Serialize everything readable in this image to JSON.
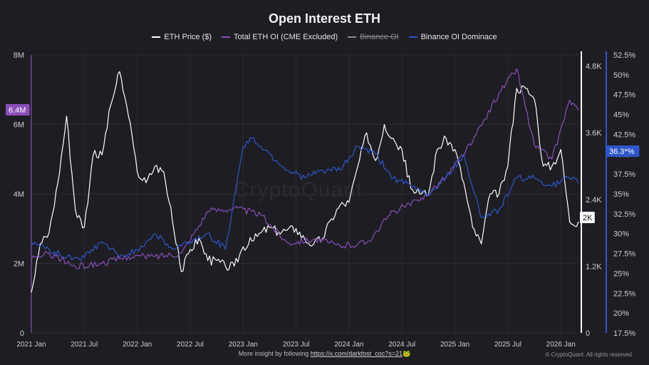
{
  "chart_data": {
    "type": "line",
    "title": "Open Interest ETH",
    "legend_position": "top-center",
    "grid": true,
    "x_ticks": [
      "2021 Jan",
      "2021 Jul",
      "2022 Jan",
      "2022 Jul",
      "2023 Jan",
      "2023 Jul",
      "2024 Jan",
      "2024 Jul",
      "2025 Jan",
      "2025 Jul",
      "2026 Jan"
    ],
    "x_range": [
      "2021 Jan",
      "2026 Mar"
    ],
    "y_left": {
      "ylim": [
        0,
        8000000
      ],
      "ticks": [
        "0",
        "2M",
        "4M",
        "6M",
        "8M"
      ]
    },
    "y_price": {
      "ylim": [
        0,
        5000
      ],
      "ticks": [
        "0",
        "1.2K",
        "2.4K",
        "3.6K",
        "4.8K"
      ]
    },
    "y_dominance": {
      "ylim": [
        17.5,
        52.5
      ],
      "unit": "%",
      "ticks": [
        "17.5%",
        "20%",
        "22.5%",
        "25%",
        "27.5%",
        "30%",
        "32.5%",
        "35%",
        "37.5%",
        "40%",
        "42.5%",
        "45%",
        "47.5%",
        "50%",
        "52.5%"
      ]
    },
    "badges": {
      "left": "6.4M",
      "price": "2K",
      "dominance": "36.3*%"
    },
    "series": [
      {
        "name": "ETH Price ($)",
        "axis": "price",
        "color": "#ffffff",
        "x": [
          "2021-01",
          "2021-02",
          "2021-03",
          "2021-04",
          "2021-05",
          "2021-06",
          "2021-07",
          "2021-08",
          "2021-09",
          "2021-10",
          "2021-11",
          "2021-12",
          "2022-01",
          "2022-02",
          "2022-03",
          "2022-04",
          "2022-05",
          "2022-06",
          "2022-07",
          "2022-08",
          "2022-09",
          "2022-10",
          "2022-11",
          "2022-12",
          "2023-01",
          "2023-02",
          "2023-03",
          "2023-04",
          "2023-05",
          "2023-06",
          "2023-07",
          "2023-08",
          "2023-09",
          "2023-10",
          "2023-11",
          "2023-12",
          "2024-01",
          "2024-02",
          "2024-03",
          "2024-04",
          "2024-05",
          "2024-06",
          "2024-07",
          "2024-08",
          "2024-09",
          "2024-10",
          "2024-11",
          "2024-12",
          "2025-01",
          "2025-02",
          "2025-03",
          "2025-04",
          "2025-05",
          "2025-06",
          "2025-07",
          "2025-08",
          "2025-09",
          "2025-10",
          "2025-11",
          "2025-12",
          "2026-01",
          "2026-02",
          "2026-03"
        ],
        "values": [
          730,
          1600,
          1800,
          2700,
          3900,
          2200,
          1900,
          3200,
          3200,
          4100,
          4700,
          3900,
          2900,
          2700,
          3000,
          2900,
          2000,
          1100,
          1500,
          1700,
          1300,
          1300,
          1200,
          1200,
          1550,
          1650,
          1800,
          1900,
          1820,
          1850,
          1880,
          1680,
          1600,
          1700,
          2050,
          2300,
          2350,
          3000,
          3600,
          3100,
          3750,
          3500,
          3300,
          2600,
          2500,
          2500,
          3300,
          3500,
          3300,
          2700,
          1900,
          1600,
          2500,
          2500,
          3000,
          4400,
          4400,
          4200,
          3000,
          3000,
          3300,
          2000,
          2000
        ]
      },
      {
        "name": "Total ETH OI (CME Excluded)",
        "axis": "left",
        "color": "#8a4fb8",
        "x": [
          "2021-01",
          "2021-03",
          "2021-06",
          "2021-09",
          "2021-12",
          "2022-03",
          "2022-06",
          "2022-09",
          "2022-12",
          "2023-03",
          "2023-06",
          "2023-09",
          "2023-12",
          "2024-03",
          "2024-06",
          "2024-09",
          "2024-12",
          "2025-03",
          "2025-06",
          "2025-08",
          "2025-10",
          "2025-12",
          "2026-02",
          "2026-03"
        ],
        "values": [
          2100000,
          2300000,
          1900000,
          2000000,
          2200000,
          2200000,
          2300000,
          3500000,
          3600000,
          3400000,
          2600000,
          2700000,
          2500000,
          2600000,
          3500000,
          3800000,
          4500000,
          5500000,
          6900000,
          7600000,
          5400000,
          5000000,
          6700000,
          6400000
        ]
      },
      {
        "name": "Binance OI",
        "axis": "left",
        "color": "#8a8a8a",
        "enabled": false
      },
      {
        "name": "Binance OI Dominace",
        "axis": "dominance",
        "color": "#2f56c8",
        "x": [
          "2021-01",
          "2021-03",
          "2021-05",
          "2021-07",
          "2021-09",
          "2021-11",
          "2022-01",
          "2022-03",
          "2022-05",
          "2022-07",
          "2022-09",
          "2022-11",
          "2023-01",
          "2023-02",
          "2023-04",
          "2023-06",
          "2023-08",
          "2023-10",
          "2023-12",
          "2024-02",
          "2024-04",
          "2024-06",
          "2024-08",
          "2024-10",
          "2024-12",
          "2025-02",
          "2025-04",
          "2025-06",
          "2025-08",
          "2025-10",
          "2025-12",
          "2026-02",
          "2026-03"
        ],
        "values": [
          29,
          28,
          27,
          27,
          29,
          27,
          28,
          30,
          28,
          29,
          30,
          28,
          41,
          42,
          40,
          38,
          37,
          38,
          38,
          41,
          40,
          37,
          36,
          35,
          37,
          40,
          32,
          33,
          37,
          37,
          36,
          37,
          36.3
        ]
      }
    ]
  },
  "watermark": "CryptoQuant",
  "footer": {
    "text": "More insight by following",
    "link": "https://x.com/darkfost_coc?s=21",
    "emoji": "🐸"
  },
  "copyright": "© CryptoQuant. All rights reserved",
  "colors": {
    "background": "#1d1d23",
    "grid": "#2c2c33",
    "price": "#ffffff",
    "oi": "#8a4fb8",
    "dominance": "#2f56c8"
  }
}
